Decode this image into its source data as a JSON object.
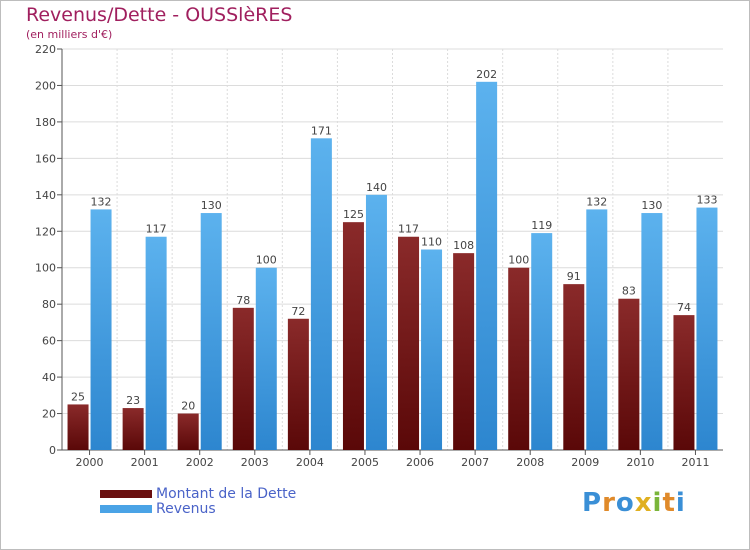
{
  "header": {
    "title": "Revenus/Dette - OUSSlèRES",
    "subtitle": "(en milliers d'€)"
  },
  "legend": {
    "debt_label": "Montant de la Dette",
    "revenue_label": "Revenus"
  },
  "logo": {
    "text": "Proxiti",
    "letter_colors": [
      "#3a8fd6",
      "#e08a2a",
      "#3a8fd6",
      "#e0b020",
      "#7ab53a",
      "#e08a2a",
      "#3a8fd6"
    ]
  },
  "colors": {
    "debt": "#7a1a1a",
    "revenue": "#4aa3e6",
    "axis": "#555555",
    "grid": "#dcdcdc",
    "title": "#a01f5e"
  },
  "chart_data": {
    "type": "bar",
    "title": "Revenus/Dette - OUSSlèRES",
    "ylabel": "(en milliers d'€)",
    "xlabel": "",
    "ylim": [
      0,
      220
    ],
    "yticks": [
      0,
      20,
      40,
      60,
      80,
      100,
      120,
      140,
      160,
      180,
      200,
      220
    ],
    "grid": true,
    "legend_position": "bottom-left",
    "categories": [
      "2000",
      "2001",
      "2002",
      "2003",
      "2004",
      "2005",
      "2006",
      "2007",
      "2008",
      "2009",
      "2010",
      "2011"
    ],
    "series": [
      {
        "name": "Montant de la Dette",
        "values": [
          25,
          23,
          20,
          78,
          72,
          125,
          117,
          108,
          100,
          91,
          83,
          74
        ]
      },
      {
        "name": "Revenus",
        "values": [
          132,
          117,
          130,
          100,
          171,
          140,
          110,
          202,
          119,
          132,
          130,
          133
        ]
      }
    ]
  }
}
